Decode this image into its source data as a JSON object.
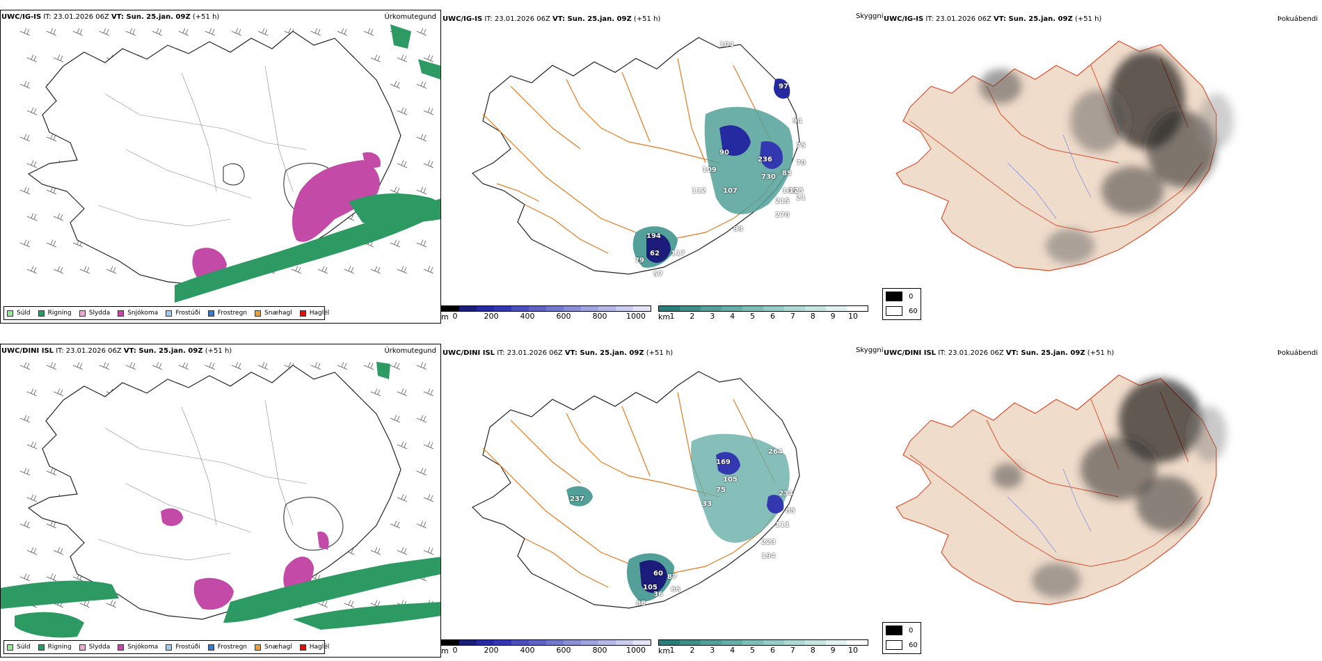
{
  "rows": [
    {
      "model_bold": "UWC/IG-IS",
      "it": " IT: 23.01.2026 06Z ",
      "vt_bold": "VT: Sun. 25.jan. 09Z",
      "lead": " (+51 h)"
    },
    {
      "model_bold": "UWC/DINI ISL",
      "it": " IT: 23.01.2026 06Z ",
      "vt_bold": "VT: Sun. 25.jan. 09Z",
      "lead": " (+51 h)"
    }
  ],
  "panel_titles": {
    "precip_type": "Úrkomutegund",
    "visibility": "Skyggni",
    "fog": "Þokuábendi"
  },
  "precip_legend": [
    {
      "label": "Súld",
      "color": "#90ee90"
    },
    {
      "label": "Rigning",
      "color": "#2e9a63"
    },
    {
      "label": "Slydda",
      "color": "#f4a7d6"
    },
    {
      "label": "Snjókoma",
      "color": "#c34aa6"
    },
    {
      "label": "Frostúði",
      "color": "#9ecbf2"
    },
    {
      "label": "Frostregn",
      "color": "#3a78c9"
    },
    {
      "label": "Snæhagl",
      "color": "#f0a030"
    },
    {
      "label": "Haglél",
      "color": "#e01010"
    }
  ],
  "colorbar_m": {
    "unit": "m",
    "ticks": [
      "0",
      "200",
      "400",
      "600",
      "800",
      "1000"
    ],
    "colors": [
      "#000000",
      "#1c1c7a",
      "#262aa0",
      "#3338b0",
      "#4a4fbc",
      "#5f63c4",
      "#7479cc",
      "#8a8fd6",
      "#a0a4df",
      "#b6b9e7",
      "#cccef0",
      "#e3e4f7"
    ]
  },
  "colorbar_km": {
    "unit": "km",
    "ticks": [
      "1",
      "2",
      "3",
      "4",
      "5",
      "6",
      "7",
      "8",
      "9",
      "10"
    ],
    "colors": [
      "#2a7d78",
      "#3e8d88",
      "#52a099",
      "#68aea8",
      "#7fbdb7",
      "#96cbc6",
      "#aed9d4",
      "#c6e6e2",
      "#e1f2f0",
      "#ffffff"
    ]
  },
  "fog_legend": [
    {
      "label": "0",
      "color": "#000000"
    },
    {
      "label": "60",
      "color": "#ffffff"
    }
  ],
  "visibility_labels": {
    "row1": [
      "104",
      "97",
      "94",
      "90",
      "109",
      "112",
      "107",
      "236",
      "730",
      "85",
      "108",
      "125",
      "215",
      "270",
      "93",
      "194",
      "62",
      "117",
      "79",
      "57",
      "75",
      "70",
      "21"
    ],
    "row2": [
      "264",
      "169",
      "105",
      "75",
      "33",
      "234",
      "85",
      "111",
      "223",
      "194",
      "237",
      "60",
      "87",
      "105",
      "36",
      "88",
      "66"
    ]
  }
}
